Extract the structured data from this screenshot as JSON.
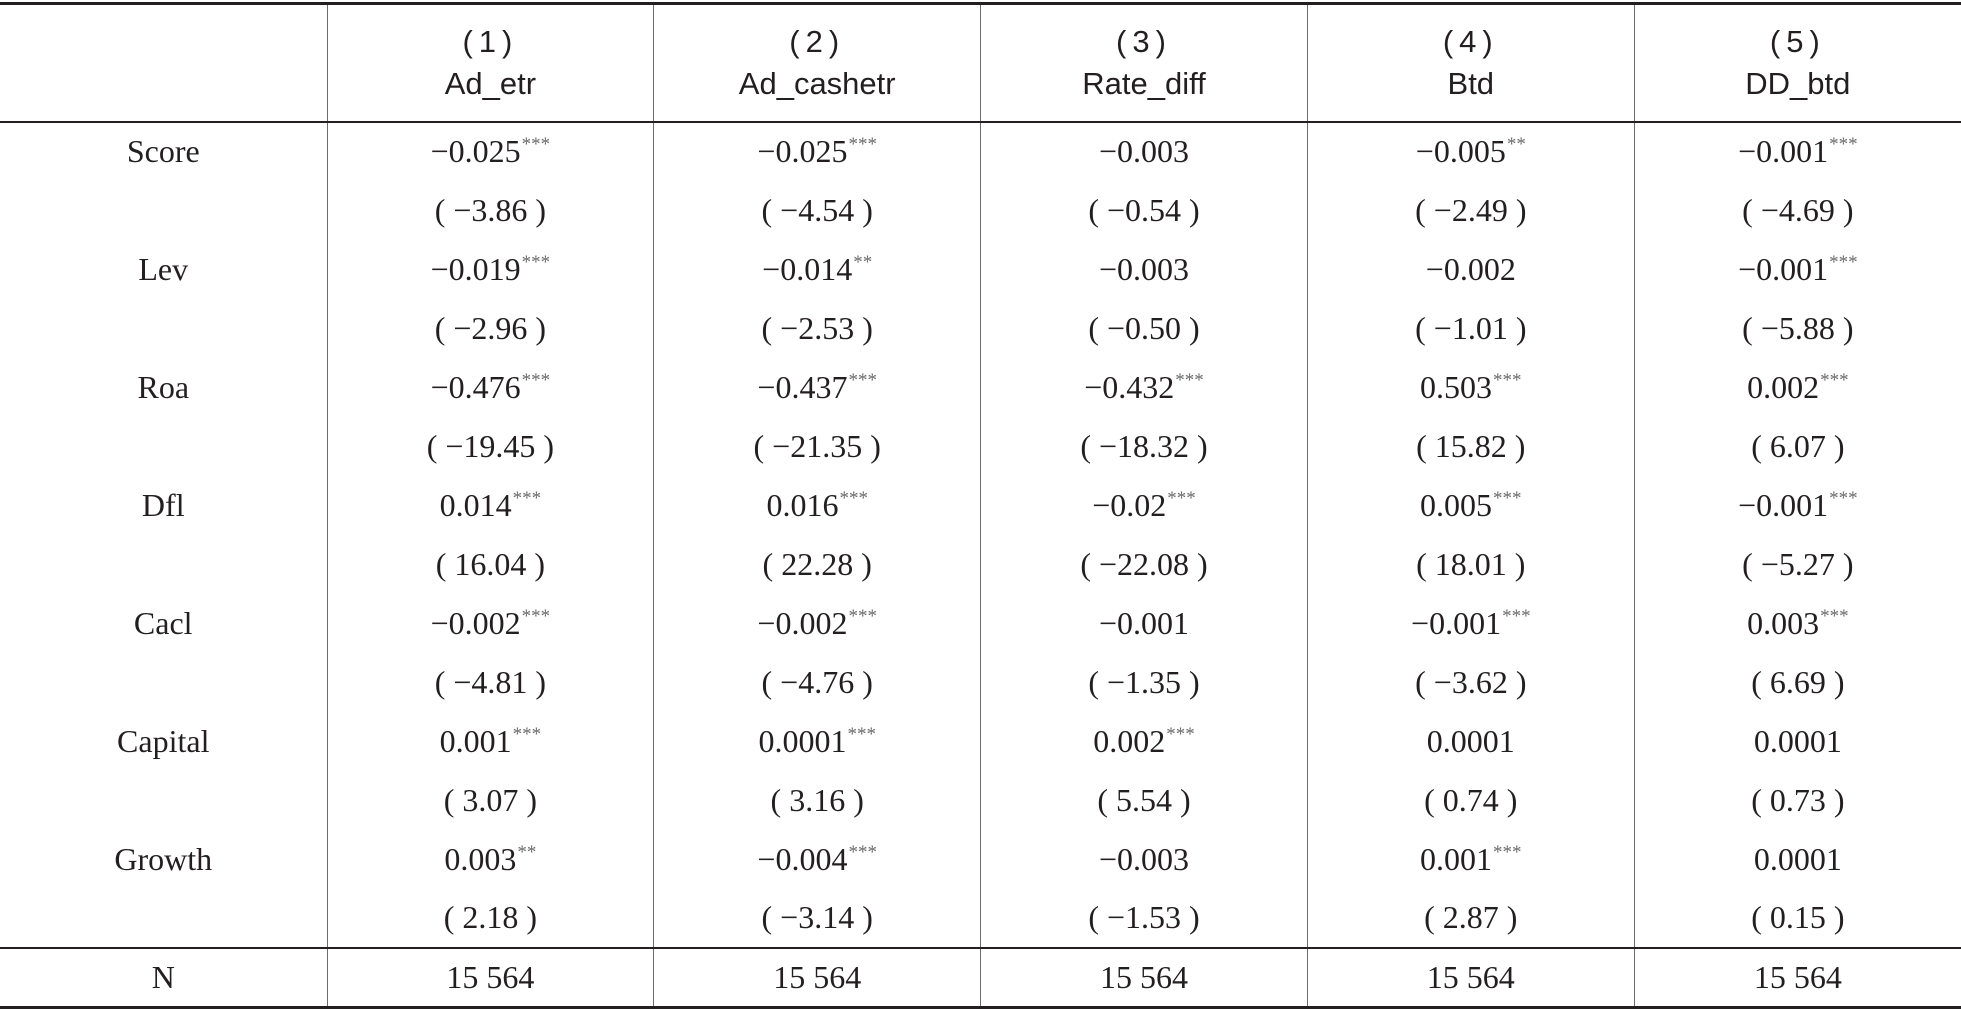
{
  "columns": [
    {
      "num": "(1)",
      "name": "Ad_etr"
    },
    {
      "num": "(2)",
      "name": "Ad_cashetr"
    },
    {
      "num": "(3)",
      "name": "Rate_diff"
    },
    {
      "num": "(4)",
      "name": "Btd"
    },
    {
      "num": "(5)",
      "name": "DD_btd"
    }
  ],
  "rows": [
    {
      "variable": "Score",
      "coef": [
        "−0.025",
        "−0.025",
        "−0.003",
        "−0.005",
        "−0.001"
      ],
      "stars": [
        "***",
        "***",
        "",
        "**",
        "***"
      ],
      "tstat": [
        "( −3.86 )",
        "( −4.54 )",
        "( −0.54 )",
        "( −2.49 )",
        "( −4.69 )"
      ]
    },
    {
      "variable": "Lev",
      "coef": [
        "−0.019",
        "−0.014",
        "−0.003",
        "−0.002",
        "−0.001"
      ],
      "stars": [
        "***",
        "**",
        "",
        "",
        "***"
      ],
      "tstat": [
        "( −2.96 )",
        "( −2.53 )",
        "( −0.50 )",
        "( −1.01 )",
        "( −5.88 )"
      ]
    },
    {
      "variable": "Roa",
      "coef": [
        "−0.476",
        "−0.437",
        "−0.432",
        "0.503",
        "0.002"
      ],
      "stars": [
        "***",
        "***",
        "***",
        "***",
        "***"
      ],
      "tstat": [
        "( −19.45 )",
        "( −21.35 )",
        "( −18.32 )",
        "( 15.82 )",
        "( 6.07 )"
      ]
    },
    {
      "variable": "Dfl",
      "coef": [
        "0.014",
        "0.016",
        "−0.02",
        "0.005",
        "−0.001"
      ],
      "stars": [
        "***",
        "***",
        "***",
        "***",
        "***"
      ],
      "tstat": [
        "( 16.04 )",
        "( 22.28 )",
        "( −22.08 )",
        "( 18.01 )",
        "( −5.27 )"
      ]
    },
    {
      "variable": "Cacl",
      "coef": [
        "−0.002",
        "−0.002",
        "−0.001",
        "−0.001",
        "0.003"
      ],
      "stars": [
        "***",
        "***",
        "",
        "***",
        "***"
      ],
      "tstat": [
        "( −4.81 )",
        "( −4.76 )",
        "( −1.35 )",
        "( −3.62 )",
        "( 6.69 )"
      ]
    },
    {
      "variable": "Capital",
      "coef": [
        "0.001",
        "0.0001",
        "0.002",
        "0.0001",
        "0.0001"
      ],
      "stars": [
        "***",
        "***",
        "***",
        "",
        ""
      ],
      "tstat": [
        "( 3.07 )",
        "( 3.16 )",
        "( 5.54 )",
        "( 0.74 )",
        "( 0.73 )"
      ]
    },
    {
      "variable": "Growth",
      "coef": [
        "0.003",
        "−0.004",
        "−0.003",
        "0.001",
        "0.0001"
      ],
      "stars": [
        "**",
        "***",
        "",
        "***",
        ""
      ],
      "tstat": [
        "( 2.18 )",
        "( −3.14 )",
        "( −1.53 )",
        "( 2.87 )",
        "( 0.15 )"
      ]
    }
  ],
  "footer": {
    "label": "N",
    "values": [
      "15 564",
      "15 564",
      "15 564",
      "15 564",
      "15 564"
    ]
  }
}
